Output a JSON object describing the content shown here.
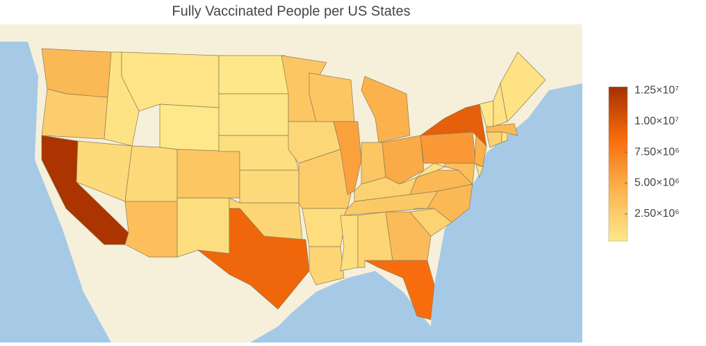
{
  "chart_data": {
    "type": "choropleth",
    "title": "Fully Vaccinated People per US States",
    "values": [
      4000000,
      2400000,
      12500000,
      1400000,
      700000,
      600000,
      300000,
      1500000,
      3500000,
      3000000,
      1100000,
      400000,
      500000,
      1000000,
      1400000,
      1800000,
      9000000,
      3000000,
      1600000,
      2500000,
      1200000,
      1800000,
      3000000,
      5500000,
      4500000,
      3000000,
      5000000,
      2000000,
      2700000,
      1000000,
      1800000,
      3800000,
      8500000,
      2000000,
      4000000,
      4000000,
      800000,
      6000000,
      9500000,
      4500000,
      3500000,
      500000,
      2000000,
      600000,
      4000000,
      400000,
      800000,
      800000
    ],
    "colorscale": [
      "#fee88a",
      "#fbb34e",
      "#f76b0c",
      "#a53000"
    ],
    "zlim": [
      300000,
      12800000
    ],
    "zticks": [
      {
        "value": 2500000,
        "label": "2.50×10⁶"
      },
      {
        "value": 5000000,
        "label": "5.00×10⁶"
      },
      {
        "value": 7500000,
        "label": "7.50×10⁶"
      },
      {
        "value": 10000000,
        "label": "1.00×10⁷"
      },
      {
        "value": 12500000,
        "label": "1.25×10⁷"
      }
    ]
  }
}
